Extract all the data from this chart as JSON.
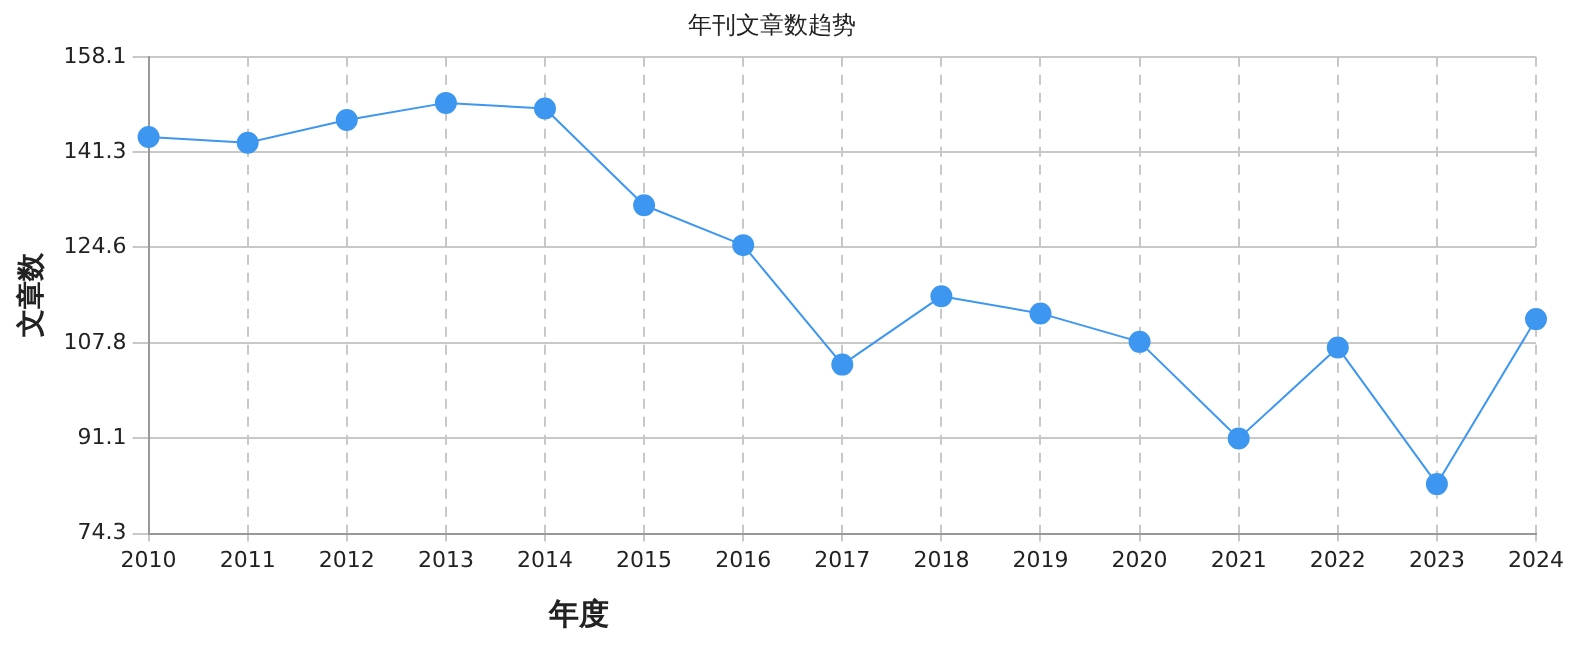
{
  "chart_data": {
    "type": "line",
    "title": "年刊文章数趋势",
    "xlabel": "年度",
    "ylabel": "文章数",
    "categories": [
      "2010",
      "2011",
      "2012",
      "2013",
      "2014",
      "2015",
      "2016",
      "2017",
      "2018",
      "2019",
      "2020",
      "2021",
      "2022",
      "2023",
      "2024"
    ],
    "series": [
      {
        "color": "#3d97f0",
        "values": [
          144,
          143,
          147,
          150,
          149,
          132,
          125,
          104,
          116,
          113,
          108,
          91,
          107,
          83,
          112
        ]
      }
    ],
    "ylim": [
      74.3,
      158.1
    ],
    "yticks": [
      74.3,
      91.1,
      107.8,
      124.6,
      141.3,
      158.1
    ],
    "grid": true,
    "marker": "circle",
    "line_style": "solid",
    "legend": false
  }
}
